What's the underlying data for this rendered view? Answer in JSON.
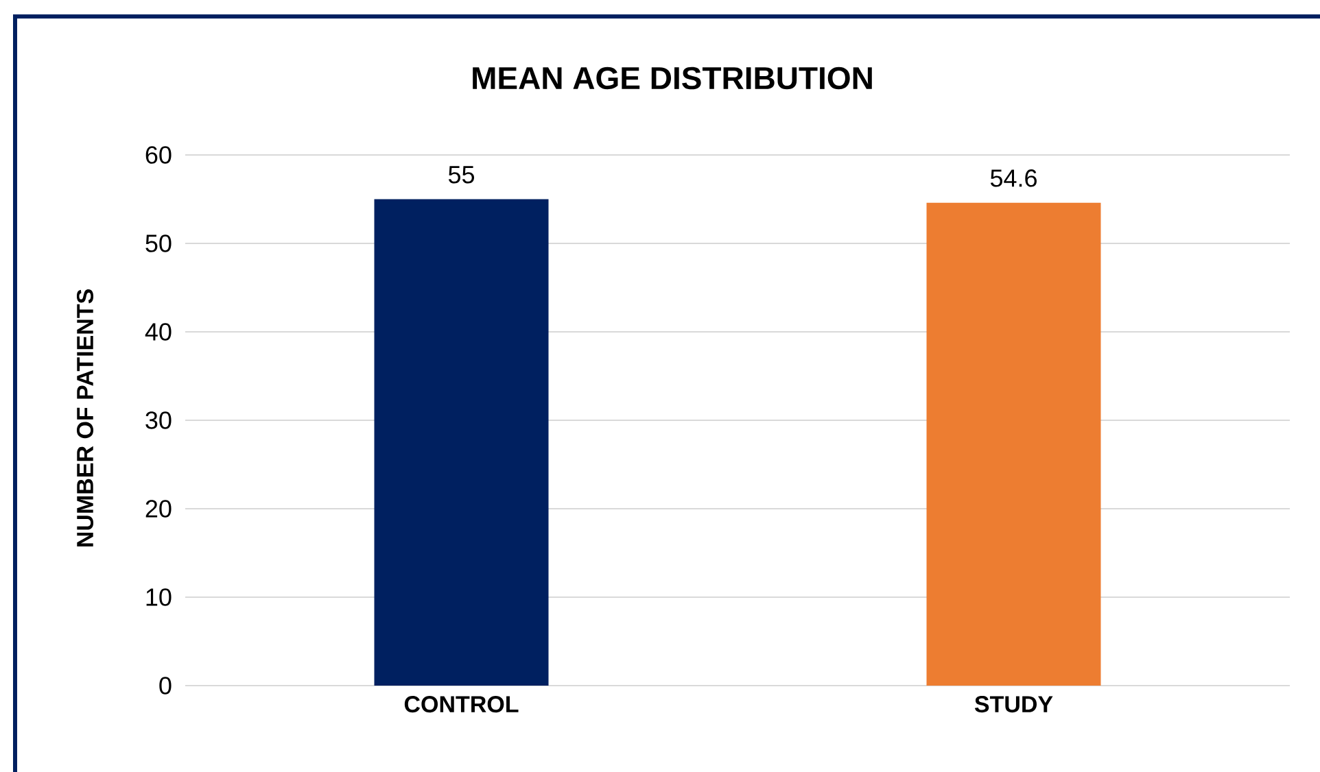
{
  "chart_data": {
    "type": "bar",
    "title": "MEAN AGE DISTRIBUTION",
    "ylabel": "NUMBER OF PATIENTS",
    "categories": [
      "CONTROL",
      "STUDY"
    ],
    "values": [
      55,
      54.6
    ],
    "colors": [
      "#002060",
      "#ED7D31"
    ],
    "ylim": [
      0,
      60
    ],
    "yticks": [
      0,
      10,
      20,
      30,
      40,
      50,
      60
    ],
    "grid": "y",
    "data_labels": true
  }
}
